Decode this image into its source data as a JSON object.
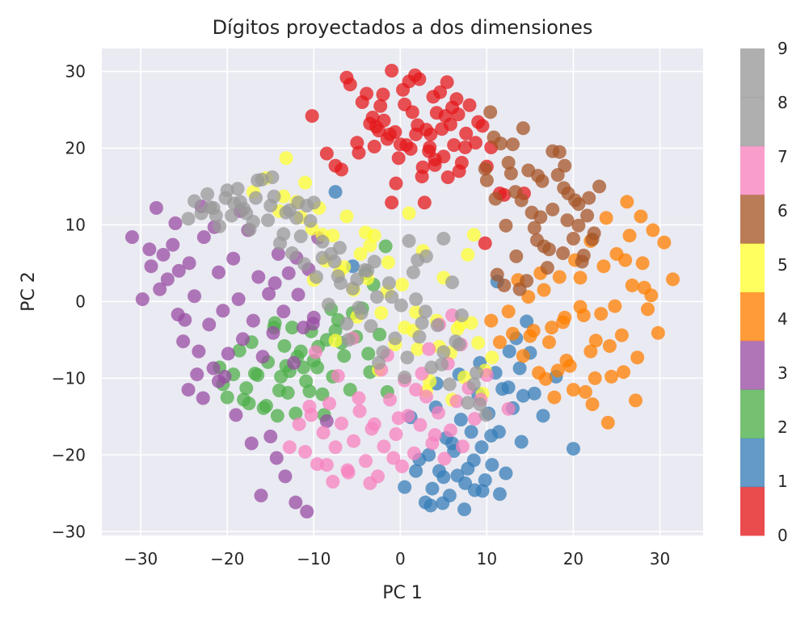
{
  "chart_data": {
    "type": "scatter",
    "title": "Dígitos proyectados a dos dimensiones",
    "xlabel": "PC 1",
    "ylabel": "PC 2",
    "xlim": [
      -34.5,
      35
    ],
    "ylim": [
      -30.5,
      33
    ],
    "xticks": [
      -30,
      -20,
      -10,
      0,
      10,
      20,
      30
    ],
    "yticks": [
      -30,
      -20,
      -10,
      0,
      10,
      20,
      30
    ],
    "xtick_labels": [
      "−30",
      "−20",
      "−10",
      "0",
      "10",
      "20",
      "30"
    ],
    "ytick_labels": [
      "−30",
      "−20",
      "−10",
      "0",
      "10",
      "20",
      "30"
    ],
    "grid": true,
    "colorbar": {
      "labels": [
        "0",
        "1",
        "2",
        "3",
        "4",
        "5",
        "6",
        "7",
        "8",
        "9"
      ],
      "colors": [
        "#e41a1c",
        "#377eb8",
        "#4daf4a",
        "#984ea3",
        "#ff7f00",
        "#ffff33",
        "#a65628",
        "#f781bf",
        "#999999",
        "#999999"
      ]
    },
    "series": [
      {
        "class": "0",
        "color": "#e41a1c",
        "x": [
          -10.2,
          -6.2,
          -5.8,
          -4.4,
          -3.9,
          -3.2,
          -2.8,
          -2.3,
          -1.9,
          -1.5,
          -1.0,
          -0.6,
          -0.2,
          0.3,
          0.7,
          1.0,
          1.4,
          1.8,
          2.2,
          2.6,
          3.0,
          3.4,
          3.8,
          4.2,
          4.6,
          5.0,
          5.4,
          5.8,
          6.2,
          6.7,
          7.1,
          7.6,
          8.0,
          8.7,
          9.5,
          10.0,
          -4.8,
          -3.5,
          -1.2,
          0.5,
          2.0,
          3.3,
          4.8,
          6.5,
          -2.0,
          1.2,
          4.0,
          7.5,
          -0.5,
          2.5,
          5.5,
          -8.5,
          -7.5,
          -3.0,
          0.0,
          3.5,
          6.0,
          9.0,
          10.5,
          11.5,
          12.0,
          14.3,
          9.8,
          -6.8,
          -5.0,
          -2.5,
          1.7,
          5.2,
          -1.0,
          2.8,
          6.8,
          4.0
        ],
        "y": [
          24.2,
          29.2,
          28.3,
          26.0,
          27.1,
          24.0,
          22.8,
          25.5,
          23.6,
          21.2,
          30.1,
          22.1,
          18.7,
          27.6,
          20.4,
          28.7,
          24.7,
          21.8,
          29.0,
          17.5,
          22.4,
          20.1,
          26.7,
          24.6,
          27.3,
          18.9,
          28.6,
          23.1,
          20.4,
          24.4,
          18.1,
          21.9,
          25.6,
          20.7,
          22.9,
          17.6,
          19.4,
          23.2,
          21.8,
          25.7,
          23.0,
          19.6,
          22.5,
          26.4,
          27.0,
          19.9,
          17.8,
          20.1,
          15.4,
          16.3,
          16.2,
          19.3,
          17.7,
          20.2,
          20.5,
          21.8,
          25.3,
          23.4,
          20.1,
          14.1,
          13.9,
          14.1,
          7.6,
          17.2,
          20.7,
          22.3,
          29.5,
          24.2,
          12.9,
          12.9,
          17.0,
          18.5
        ]
      },
      {
        "class": "1",
        "color": "#377eb8",
        "x": [
          2.9,
          3.3,
          3.7,
          4.1,
          4.5,
          4.9,
          5.3,
          5.7,
          6.2,
          6.6,
          7.0,
          7.4,
          7.8,
          8.2,
          8.6,
          9.0,
          9.4,
          9.8,
          10.2,
          10.6,
          11.0,
          11.4,
          11.8,
          12.2,
          12.6,
          13.0,
          13.4,
          13.8,
          14.2,
          14.6,
          15.0,
          15.5,
          16.5,
          18.0,
          20.0,
          0.5,
          1.2,
          2.2,
          3.5,
          5.0,
          6.0,
          7.5,
          8.5,
          9.5,
          10.5,
          11.5,
          12.5,
          14.0,
          -5.5,
          -7.5,
          1.8,
          4.2,
          6.8,
          9.2,
          11.2
        ],
        "y": [
          -26.2,
          -20.0,
          -24.4,
          -13.8,
          -22.1,
          -26.3,
          -17.8,
          -25.3,
          -19.5,
          -22.7,
          -15.4,
          -27.1,
          -21.8,
          -17.0,
          -24.6,
          -12.1,
          -19.0,
          -23.3,
          -14.6,
          -21.3,
          -9.3,
          -17.0,
          -11.4,
          -22.4,
          -6.5,
          -13.9,
          -4.8,
          -8.7,
          -12.3,
          -2.6,
          -6.7,
          -12.0,
          -14.9,
          -9.8,
          -19.2,
          -24.2,
          -15.1,
          -20.6,
          -26.6,
          -22.9,
          -18.5,
          -23.7,
          -20.7,
          -24.7,
          -17.5,
          -25.1,
          -11.2,
          -18.3,
          4.6,
          14.3,
          -22.1,
          -10.7,
          -9.5,
          -8.0,
          2.6
        ]
      },
      {
        "class": "2",
        "color": "#4daf4a",
        "x": [
          -20.9,
          -20.0,
          -19.3,
          -18.6,
          -17.8,
          -17.2,
          -16.5,
          -15.8,
          -15.3,
          -14.6,
          -14.0,
          -13.4,
          -12.8,
          -12.1,
          -11.5,
          -10.9,
          -10.3,
          -9.6,
          -9.0,
          -8.5,
          -7.8,
          -7.2,
          -6.5,
          -5.8,
          -5.1,
          -4.4,
          -3.7,
          -3.1,
          -2.4,
          -1.7,
          -15.5,
          -13.8,
          -11.9,
          -10.5,
          -8.8,
          -6.8,
          -12.5,
          -10.0,
          -16.8,
          -14.2,
          -18.1,
          -13.0,
          -11.2,
          -9.5,
          -7.5,
          -5.5,
          -3.5,
          -1.5,
          -14.5,
          -8.0,
          -4.0,
          -17.5,
          -13.2,
          -20.5
        ],
        "y": [
          -8.6,
          -12.5,
          -9.5,
          -6.4,
          -11.3,
          -5.3,
          -9.6,
          -13.9,
          -7.9,
          -3.4,
          -11.6,
          -5.8,
          -9.1,
          -14.6,
          -6.5,
          -10.4,
          -3.9,
          -8.6,
          -12.1,
          -5.0,
          -9.8,
          -2.4,
          -7.1,
          -11.5,
          -4.6,
          -0.9,
          -6.8,
          2.2,
          -4.3,
          7.2,
          -13.6,
          -9.8,
          -7.2,
          -11.7,
          -14.8,
          -5.4,
          -3.4,
          -7.7,
          -9.4,
          -14.9,
          -12.8,
          -11.9,
          -8.6,
          -5.9,
          -3.8,
          -1.5,
          -9.2,
          -11.8,
          -2.8,
          -1.0,
          3.7,
          -13.3,
          -8.4,
          -10.8
        ]
      },
      {
        "class": "3",
        "color": "#984ea3",
        "x": [
          -31.0,
          -29.8,
          -28.8,
          -28.2,
          -27.4,
          -26.9,
          -26.3,
          -25.6,
          -24.9,
          -24.4,
          -23.8,
          -23.3,
          -22.7,
          -22.1,
          -21.6,
          -21.0,
          -20.5,
          -19.9,
          -19.3,
          -18.7,
          -18.2,
          -17.6,
          -17.0,
          -16.4,
          -15.9,
          -15.2,
          -14.7,
          -14.1,
          -13.5,
          -12.9,
          -12.3,
          -11.8,
          -11.2,
          -10.6,
          -10.0,
          -9.5,
          -27.8,
          -25.1,
          -22.8,
          -20.3,
          -24.5,
          -19.0,
          -16.1,
          -13.3,
          -10.8,
          -8.5,
          -29.0,
          -26.0,
          -23.0,
          -21.5,
          -17.2,
          -14.3,
          -12.1,
          -15.0,
          -14.5,
          -12.0,
          -21.0,
          -23.5,
          -10.1,
          -25.7,
          -18.5
        ],
        "y": [
          8.4,
          0.3,
          4.6,
          12.2,
          6.1,
          2.9,
          7.4,
          4.0,
          -2.4,
          5.0,
          0.7,
          -6.5,
          8.4,
          -3.0,
          -8.7,
          3.8,
          -1.2,
          -6.8,
          5.6,
          0.3,
          -4.9,
          9.3,
          -2.5,
          3.2,
          -7.2,
          1.0,
          -4.1,
          6.2,
          -1.3,
          3.7,
          -8.0,
          0.9,
          -3.4,
          4.2,
          -2.1,
          8.3,
          1.6,
          -5.2,
          -12.6,
          -9.8,
          -11.5,
          -14.8,
          -25.3,
          -22.8,
          -27.4,
          -15.6,
          6.8,
          10.2,
          12.4,
          9.7,
          -18.5,
          -20.4,
          -26.2,
          -17.6,
          2.4,
          5.7,
          -10.4,
          -9.5,
          -2.9,
          -1.7,
          11.8
        ]
      },
      {
        "class": "4",
        "color": "#ff7f00",
        "x": [
          12.5,
          13.0,
          13.6,
          14.2,
          14.8,
          15.4,
          16.0,
          16.6,
          17.2,
          17.8,
          18.4,
          19.0,
          19.6,
          20.2,
          20.8,
          21.4,
          22.0,
          22.6,
          23.2,
          23.8,
          24.4,
          25.0,
          25.6,
          26.2,
          26.8,
          27.4,
          28.0,
          28.6,
          29.2,
          29.8,
          30.5,
          31.5,
          19.2,
          21.2,
          23.5,
          25.8,
          28.2,
          17.5,
          20.8,
          24.2,
          26.5,
          29.0,
          16.2,
          18.8,
          22.2,
          24.8,
          27.8,
          15.0,
          22.5,
          26.0,
          20.0,
          18.2,
          22.0,
          24.0,
          10.5,
          11.5,
          27.2,
          16.8
        ],
        "y": [
          -1.3,
          -4.2,
          2.8,
          -7.1,
          0.6,
          -3.8,
          -9.3,
          1.5,
          -5.3,
          -12.5,
          3.2,
          -2.1,
          -8.4,
          5.4,
          -0.7,
          -11.8,
          7.9,
          -5.1,
          -1.6,
          10.9,
          -9.8,
          6.2,
          -4.4,
          13.0,
          2.1,
          -7.3,
          5.0,
          -1.0,
          9.3,
          -4.1,
          7.7,
          2.9,
          -7.7,
          -1.8,
          4.6,
          -9.2,
          1.8,
          -3.4,
          3.1,
          -5.8,
          8.6,
          0.8,
          3.7,
          -2.7,
          -13.4,
          -0.6,
          11.1,
          -4.5,
          -10.0,
          5.4,
          -11.5,
          -9.0,
          -6.5,
          -15.8,
          -2.5,
          -5.3,
          -12.9,
          -10.1
        ]
      },
      {
        "class": "5",
        "color": "#ffff33",
        "x": [
          -17.0,
          -15.5,
          -14.0,
          -13.2,
          -12.0,
          -11.0,
          -10.2,
          -9.4,
          -8.6,
          -7.8,
          -7.0,
          -6.2,
          -5.4,
          -4.6,
          -3.8,
          -3.0,
          -2.2,
          -1.4,
          -0.6,
          0.2,
          1.0,
          1.8,
          2.6,
          3.4,
          4.2,
          5.0,
          5.8,
          6.6,
          7.4,
          8.2,
          9.0,
          9.8,
          10.6,
          -13.5,
          -11.5,
          -9.0,
          -6.5,
          -4.0,
          -1.5,
          1.5,
          4.5,
          7.0,
          9.5,
          -7.5,
          -5.0,
          -2.5,
          0.5,
          3.0,
          6.0,
          8.5,
          -10.0,
          -3.5,
          2.0,
          7.8
        ],
        "y": [
          14.3,
          16.1,
          11.8,
          18.7,
          13.0,
          15.5,
          9.5,
          12.2,
          5.3,
          8.6,
          3.9,
          11.1,
          1.5,
          6.2,
          3.0,
          8.6,
          -1.5,
          5.1,
          -5.6,
          2.2,
          11.5,
          -1.4,
          6.6,
          -10.4,
          -2.5,
          3.1,
          -6.7,
          -3.6,
          -9.9,
          -2.8,
          -5.4,
          -9.0,
          -7.3,
          13.7,
          11.0,
          8.7,
          4.5,
          9.0,
          1.3,
          -3.8,
          -5.9,
          -2.9,
          -12.0,
          -5.1,
          -2.0,
          -8.9,
          -3.4,
          -11.7,
          -12.8,
          8.7,
          2.8,
          7.3,
          -6.2,
          6.1
        ]
      },
      {
        "class": "6",
        "color": "#a65628",
        "x": [
          9.8,
          10.4,
          11.0,
          11.6,
          12.2,
          12.8,
          13.4,
          14.0,
          14.6,
          15.2,
          15.8,
          16.4,
          17.0,
          17.6,
          18.2,
          18.8,
          19.4,
          20.0,
          20.6,
          21.2,
          21.8,
          22.4,
          23.0,
          10.8,
          12.5,
          14.2,
          15.9,
          17.6,
          19.3,
          21.0,
          12.0,
          13.8,
          15.5,
          17.2,
          18.9,
          20.6,
          22.2,
          11.2,
          13.0,
          14.8,
          16.6,
          18.4,
          20.2,
          10.0,
          21.6,
          13.3,
          16.2,
          19.0
        ],
        "y": [
          17.3,
          24.7,
          13.4,
          20.6,
          9.9,
          16.7,
          5.9,
          13.2,
          2.7,
          11.6,
          8.0,
          15.7,
          4.4,
          12.0,
          16.5,
          6.3,
          14.1,
          8.2,
          12.7,
          6.0,
          13.5,
          8.9,
          15.0,
          21.4,
          18.1,
          22.6,
          16.4,
          19.6,
          10.6,
          5.2,
          2.1,
          1.6,
          9.6,
          6.8,
          14.8,
          9.9,
          8.1,
          3.5,
          20.5,
          17.1,
          7.2,
          19.5,
          13.2,
          15.8,
          11.2,
          14.3,
          11.0,
          17.7
        ]
      },
      {
        "class": "7",
        "color": "#f781bf",
        "x": [
          -11.7,
          -11.0,
          -10.3,
          -9.6,
          -8.9,
          -8.2,
          -7.5,
          -6.8,
          -6.1,
          -5.4,
          -4.7,
          -4.0,
          -3.3,
          -2.6,
          -1.9,
          -1.2,
          -0.5,
          0.2,
          0.9,
          1.6,
          2.3,
          3.0,
          3.7,
          4.4,
          5.1,
          5.8,
          6.5,
          7.2,
          7.9,
          8.6,
          9.3,
          10.0,
          12.5,
          -9.8,
          -7.2,
          -4.8,
          -2.2,
          0.5,
          3.3,
          5.5,
          -8.5,
          -6.0,
          -3.5,
          -0.8,
          1.8,
          4.5,
          7.0,
          -10.5,
          -5.5,
          -1.5,
          2.5,
          6.0,
          -12.8,
          -3.0,
          -7.8,
          -0.2,
          4.0
        ],
        "y": [
          -16.0,
          -19.6,
          -14.8,
          -21.2,
          -17.1,
          -13.3,
          -19.0,
          -15.9,
          -22.0,
          -18.2,
          -14.3,
          -20.8,
          -16.6,
          -22.8,
          -18.9,
          -12.8,
          -17.3,
          -21.5,
          -14.9,
          -19.8,
          -16.1,
          -12.4,
          -18.5,
          -14.5,
          -20.5,
          -16.8,
          -13.0,
          -18.9,
          -11.3,
          -15.3,
          -12.8,
          -9.6,
          -14.0,
          -6.6,
          -9.7,
          -12.6,
          -8.9,
          -10.3,
          -6.2,
          -8.1,
          -21.3,
          -22.3,
          -23.7,
          -20.4,
          -11.5,
          -3.0,
          -5.6,
          -13.7,
          -4.8,
          -7.0,
          -9.4,
          -1.8,
          -19.0,
          -16.0,
          -23.5,
          -15.2,
          -17.4
        ]
      },
      {
        "class": "8",
        "color": "#999999",
        "x": [
          -24.5,
          -23.8,
          -23.0,
          -22.3,
          -21.6,
          -20.9,
          -20.2,
          -19.5,
          -18.8,
          -18.1,
          -17.4,
          -16.7,
          -16.0,
          -15.3,
          -14.6,
          -13.9,
          -13.2,
          -12.5,
          -11.8,
          -11.1,
          -10.4,
          -9.7,
          -9.0,
          -8.3,
          -7.6,
          -6.9,
          -6.2,
          -5.5,
          -4.8,
          -4.1,
          -3.4,
          -2.7,
          -2.0,
          -1.3,
          -0.6,
          0.1,
          0.8,
          1.5,
          2.2,
          2.9,
          3.6,
          4.3,
          5.0,
          5.7,
          6.4,
          7.1,
          7.8,
          8.5,
          9.2,
          9.9,
          -22.0,
          -20.0,
          -18.5,
          -16.5,
          -15.0,
          -13.5,
          -12.0,
          -10.8,
          -9.0,
          -7.2,
          -5.0,
          -3.0,
          -1.0,
          1.0,
          3.0,
          5.0,
          -21.3,
          -19.2,
          -17.0,
          -14.8,
          -11.5,
          -8.0,
          -6.0,
          -4.5,
          -2.5,
          0.5,
          2.5,
          4.8,
          6.8,
          8.8,
          -17.8,
          -12.8,
          -10.0,
          -7.0,
          -3.8,
          2.0,
          6.0,
          1.8
        ],
        "y": [
          10.8,
          13.1,
          11.5,
          14.0,
          12.2,
          9.8,
          13.5,
          11.2,
          14.7,
          12.1,
          9.4,
          13.5,
          15.9,
          10.6,
          13.7,
          7.6,
          11.6,
          6.3,
          12.9,
          4.9,
          10.5,
          3.2,
          7.8,
          -0.4,
          5.2,
          2.4,
          -2.9,
          1.7,
          -0.8,
          4.1,
          -3.2,
          0.6,
          -6.6,
          2.4,
          -4.8,
          -0.5,
          -7.3,
          3.8,
          -4.6,
          -1.3,
          -8.6,
          -3.1,
          -6.6,
          -10.8,
          -5.2,
          -1.8,
          -13.2,
          -10.8,
          -13.4,
          -14.8,
          12.3,
          14.5,
          13.0,
          15.8,
          12.5,
          8.8,
          10.9,
          12.5,
          5.7,
          3.3,
          2.9,
          5.2,
          0.6,
          7.9,
          5.9,
          8.2,
          11.2,
          12.8,
          10.4,
          16.2,
          8.5,
          6.2,
          -5.0,
          -1.5,
          -8.0,
          -9.9,
          -2.8,
          -8.2,
          -5.6,
          -9.3,
          11.5,
          11.9,
          12.9,
          7.0,
          4.0,
          5.4,
          2.5,
          0.3
        ]
      }
    ]
  }
}
